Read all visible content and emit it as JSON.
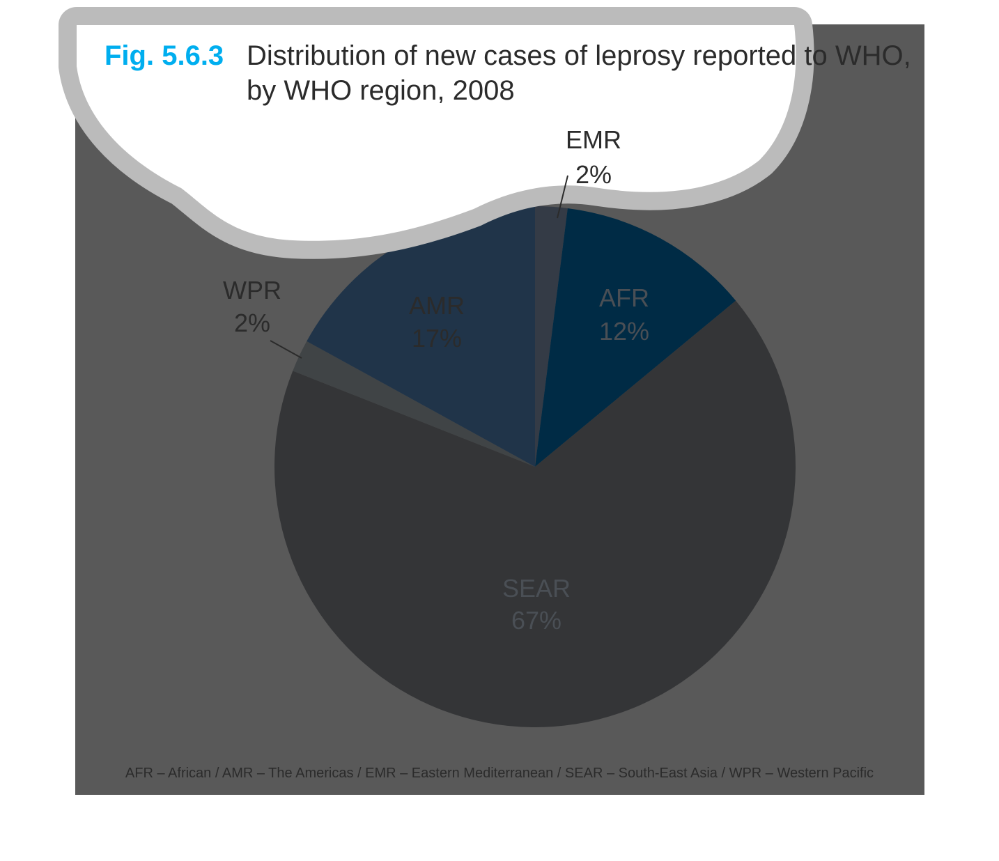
{
  "chart_data": {
    "type": "pie",
    "title_prefix": "Fig. 5.6.3",
    "title_lines": [
      "Distribution of new cases of leprosy reported to WHO,",
      "by WHO region, 2008"
    ],
    "slices": [
      {
        "name": "EMR",
        "value": 2,
        "value_label": "2%",
        "color": "#343b46",
        "label_color": "#2b2b2b"
      },
      {
        "name": "AFR",
        "value": 12,
        "value_label": "12%",
        "color": "#002b45",
        "label_color": "#4a4f55"
      },
      {
        "name": "SEAR",
        "value": 67,
        "value_label": "67%",
        "color": "#343537",
        "label_color": "#4a4f55"
      },
      {
        "name": "WPR",
        "value": 2,
        "value_label": "2%",
        "color": "#404446",
        "label_color": "#2b2b2b"
      },
      {
        "name": "AMR",
        "value": 17,
        "value_label": "17%",
        "color": "#203449",
        "label_color": "#2b2b2b"
      }
    ],
    "footnote": "AFR – African / AMR – The Americas / EMR – Eastern Mediterranean / SEAR – South-East Asia / WPR – Western Pacific"
  },
  "colors": {
    "panel": "#595959",
    "blob_fill": "#ffffff",
    "blob_border": "#bbbbbb",
    "amr_highlight": "#4a76a8",
    "title_accent": "#00aeef"
  }
}
